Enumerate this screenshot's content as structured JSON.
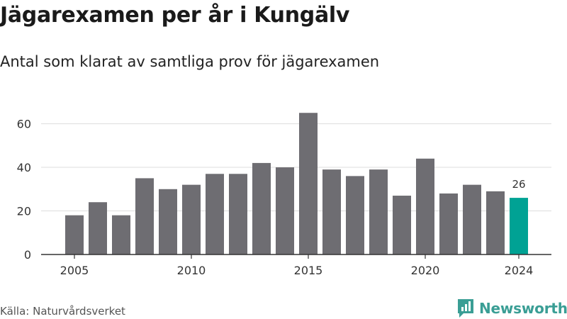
{
  "header": {
    "title": "Jägarexamen per år i Kungälv",
    "subtitle": "Antal som klarat av samtliga prov för jägarexamen"
  },
  "footer": {
    "source": "Källa: Naturvårdsverket",
    "brand": "Newsworthy"
  },
  "colors": {
    "bar": "#6e6d72",
    "highlight": "#00a294",
    "grid": "#dddddd",
    "axis": "#333333",
    "brand": "#3a9e95"
  },
  "chart_data": {
    "type": "bar",
    "categories": [
      "2005",
      "2006",
      "2007",
      "2008",
      "2009",
      "2010",
      "2011",
      "2012",
      "2013",
      "2014",
      "2015",
      "2016",
      "2017",
      "2018",
      "2019",
      "2020",
      "2021",
      "2022",
      "2023",
      "2024"
    ],
    "values": [
      18,
      24,
      18,
      35,
      30,
      32,
      37,
      37,
      42,
      40,
      65,
      39,
      36,
      39,
      27,
      44,
      28,
      32,
      29,
      26
    ],
    "highlight_category": "2024",
    "data_labels": [
      {
        "category": "2024",
        "label": "26"
      }
    ],
    "x_ticks": [
      "2005",
      "2010",
      "2015",
      "2020",
      "2024"
    ],
    "y_ticks": [
      0,
      20,
      40,
      60
    ],
    "ylim": [
      0,
      68
    ],
    "xlabel": "",
    "ylabel": "",
    "grid": true,
    "legend": "none"
  }
}
